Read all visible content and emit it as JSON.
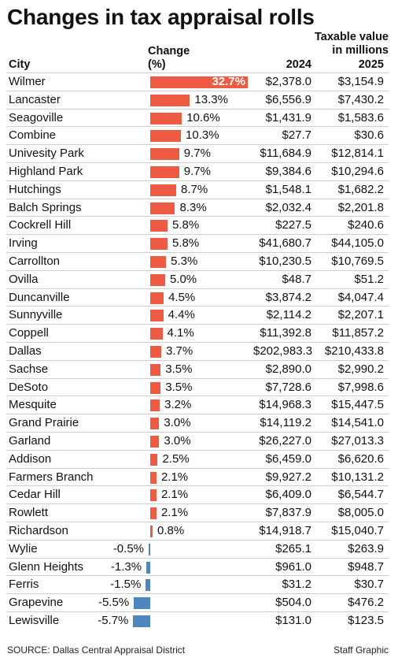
{
  "title": "Changes in tax appraisal rolls",
  "source": "SOURCE: Dallas Central Appraisal District",
  "credit": "Staff Graphic",
  "colors": {
    "positive": "#ef5b42",
    "negative": "#4f86c0",
    "divider": "#cfcfcf"
  },
  "chart_data": {
    "type": "table",
    "headers": {
      "city": "City",
      "change_line1": "Change",
      "change_line2": "(%)",
      "taxable_line1": "Taxable value",
      "taxable_line2": "in millions",
      "year1": "2024",
      "year2": "2025"
    },
    "rows": [
      {
        "city": "Wilmer",
        "change": 32.7,
        "change_label": "32.7%",
        "v2024": "$2,378.0",
        "v2025": "$3,154.9"
      },
      {
        "city": "Lancaster",
        "change": 13.3,
        "change_label": "13.3%",
        "v2024": "$6,556.9",
        "v2025": "$7,430.2"
      },
      {
        "city": "Seagoville",
        "change": 10.6,
        "change_label": "10.6%",
        "v2024": "$1,431.9",
        "v2025": "$1,583.6"
      },
      {
        "city": "Combine",
        "change": 10.3,
        "change_label": "10.3%",
        "v2024": "$27.7",
        "v2025": "$30.6"
      },
      {
        "city": "Univesity Park",
        "change": 9.7,
        "change_label": "9.7%",
        "v2024": "$11,684.9",
        "v2025": "$12,814.1"
      },
      {
        "city": "Highland Park",
        "change": 9.7,
        "change_label": "9.7%",
        "v2024": "$9,384.6",
        "v2025": "$10,294.6"
      },
      {
        "city": "Hutchings",
        "change": 8.7,
        "change_label": "8.7%",
        "v2024": "$1,548.1",
        "v2025": "$1,682.2"
      },
      {
        "city": "Balch Springs",
        "change": 8.3,
        "change_label": "8.3%",
        "v2024": "$2,032.4",
        "v2025": "$2,201.8"
      },
      {
        "city": "Cockrell Hill",
        "change": 5.8,
        "change_label": "5.8%",
        "v2024": "$227.5",
        "v2025": "$240.6"
      },
      {
        "city": "Irving",
        "change": 5.8,
        "change_label": "5.8%",
        "v2024": "$41,680.7",
        "v2025": "$44,105.0"
      },
      {
        "city": "Carrollton",
        "change": 5.3,
        "change_label": "5.3%",
        "v2024": "$10,230.5",
        "v2025": "$10,769.5"
      },
      {
        "city": "Ovilla",
        "change": 5.0,
        "change_label": "5.0%",
        "v2024": "$48.7",
        "v2025": "$51.2"
      },
      {
        "city": "Duncanville",
        "change": 4.5,
        "change_label": "4.5%",
        "v2024": "$3,874.2",
        "v2025": "$4,047.4"
      },
      {
        "city": "Sunnyville",
        "change": 4.4,
        "change_label": "4.4%",
        "v2024": "$2,114.2",
        "v2025": "$2,207.1"
      },
      {
        "city": "Coppell",
        "change": 4.1,
        "change_label": "4.1%",
        "v2024": "$11,392.8",
        "v2025": "$11,857.2"
      },
      {
        "city": "Dallas",
        "change": 3.7,
        "change_label": "3.7%",
        "v2024": "$202,983.3",
        "v2025": "$210,433.8"
      },
      {
        "city": "Sachse",
        "change": 3.5,
        "change_label": "3.5%",
        "v2024": "$2,890.0",
        "v2025": "$2,990.2"
      },
      {
        "city": "DeSoto",
        "change": 3.5,
        "change_label": "3.5%",
        "v2024": "$7,728.6",
        "v2025": "$7,998.6"
      },
      {
        "city": "Mesquite",
        "change": 3.2,
        "change_label": "3.2%",
        "v2024": "$14,968.3",
        "v2025": "$15,447.5"
      },
      {
        "city": "Grand Prairie",
        "change": 3.0,
        "change_label": "3.0%",
        "v2024": "$14,119.2",
        "v2025": "$14,541.0"
      },
      {
        "city": "Garland",
        "change": 3.0,
        "change_label": "3.0%",
        "v2024": "$26,227.0",
        "v2025": "$27,013.3"
      },
      {
        "city": "Addison",
        "change": 2.5,
        "change_label": "2.5%",
        "v2024": "$6,459.0",
        "v2025": "$6,620.6"
      },
      {
        "city": "Farmers Branch",
        "change": 2.1,
        "change_label": "2.1%",
        "v2024": "$9,927.2",
        "v2025": "$10,131.2"
      },
      {
        "city": "Cedar Hill",
        "change": 2.1,
        "change_label": "2.1%",
        "v2024": "$6,409.0",
        "v2025": "$6,544.7"
      },
      {
        "city": "Rowlett",
        "change": 2.1,
        "change_label": "2.1%",
        "v2024": "$7,837.9",
        "v2025": "$8,005.0"
      },
      {
        "city": "Richardson",
        "change": 0.8,
        "change_label": "0.8%",
        "v2024": "$14,918.7",
        "v2025": "$15,040.7"
      },
      {
        "city": "Wylie",
        "change": -0.5,
        "change_label": "-0.5%",
        "v2024": "$265.1",
        "v2025": "$263.9"
      },
      {
        "city": "Glenn Heights",
        "change": -1.3,
        "change_label": "-1.3%",
        "v2024": "$961.0",
        "v2025": "$948.7"
      },
      {
        "city": "Ferris",
        "change": -1.5,
        "change_label": "-1.5%",
        "v2024": "$31.2",
        "v2025": "$30.7"
      },
      {
        "city": "Grapevine",
        "change": -5.5,
        "change_label": "-5.5%",
        "v2024": "$504.0",
        "v2025": "$476.2"
      },
      {
        "city": "Lewisville",
        "change": -5.7,
        "change_label": "-5.7%",
        "v2024": "$131.0",
        "v2025": "$123.5"
      }
    ]
  }
}
